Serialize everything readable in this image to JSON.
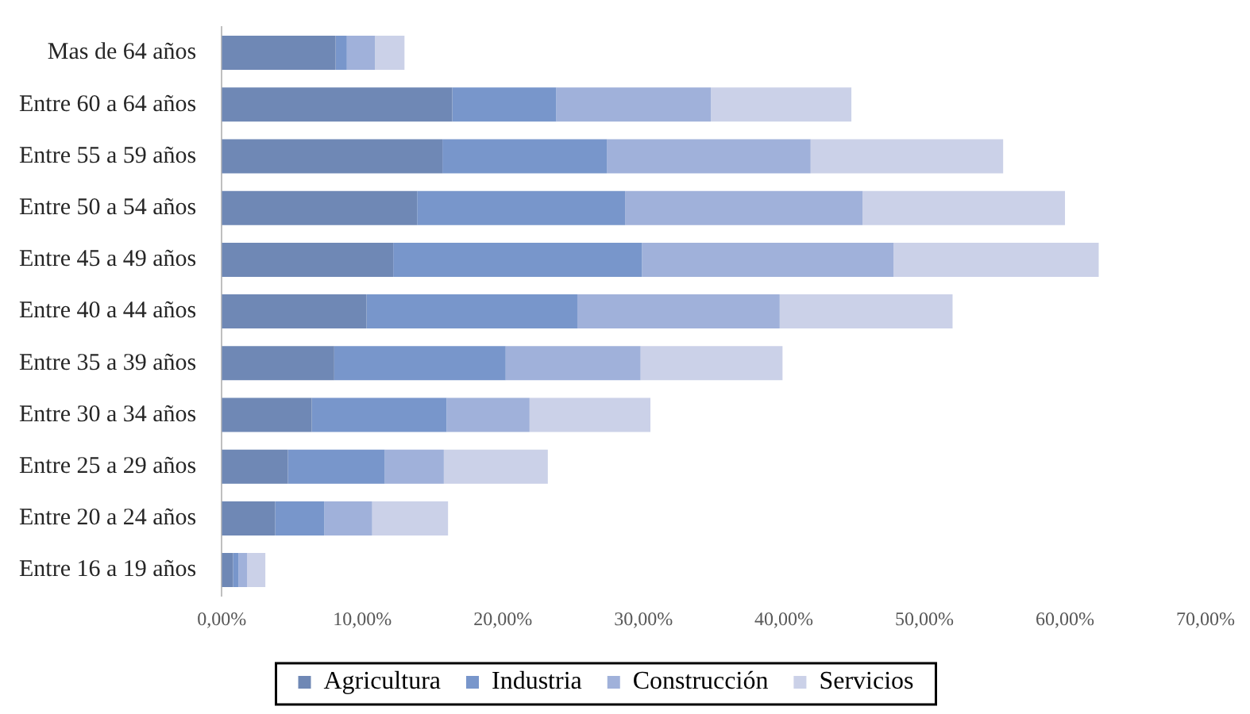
{
  "chart_data": {
    "type": "bar",
    "orientation": "horizontal",
    "stacked": true,
    "categories": [
      "Mas de 64 años",
      "Entre 60 a 64 años",
      "Entre 55 a 59 años",
      "Entre 50 a 54 años",
      "Entre 45 a 49 años",
      "Entre 40 a 44 años",
      "Entre 35 a 39 años",
      "Entre 30 a 34 años",
      "Entre 25 a 29 años",
      "Entre 20 a 24 años",
      "Entre 16 a 19 años"
    ],
    "series": [
      {
        "name": "Agricultura",
        "color": "#6f88b5",
        "values": [
          8.1,
          16.4,
          15.7,
          13.9,
          12.2,
          10.3,
          8.0,
          6.4,
          4.7,
          3.8,
          0.8
        ]
      },
      {
        "name": "Industria",
        "color": "#7896cb",
        "values": [
          0.8,
          7.4,
          11.7,
          14.8,
          17.7,
          15.0,
          12.2,
          9.6,
          6.9,
          3.5,
          0.4
        ]
      },
      {
        "name": "Construcción",
        "color": "#a0b1da",
        "values": [
          2.0,
          11.0,
          14.5,
          16.9,
          17.9,
          14.4,
          9.6,
          5.9,
          4.2,
          3.4,
          0.6
        ]
      },
      {
        "name": "Servicios",
        "color": "#cbd1e8",
        "values": [
          2.1,
          10.0,
          13.7,
          14.4,
          14.6,
          12.3,
          10.1,
          8.6,
          7.4,
          5.4,
          1.3
        ]
      }
    ],
    "xlim": [
      0,
      70
    ],
    "xticks": [
      {
        "value": 0,
        "label": "0,00%"
      },
      {
        "value": 10,
        "label": "10,00%"
      },
      {
        "value": 20,
        "label": "20,00%"
      },
      {
        "value": 30,
        "label": "30,00%"
      },
      {
        "value": 40,
        "label": "40,00%"
      },
      {
        "value": 50,
        "label": "50,00%"
      },
      {
        "value": 60,
        "label": "60,00%"
      },
      {
        "value": 70,
        "label": "70,00%"
      }
    ],
    "grid": false,
    "legend": "bottom"
  }
}
